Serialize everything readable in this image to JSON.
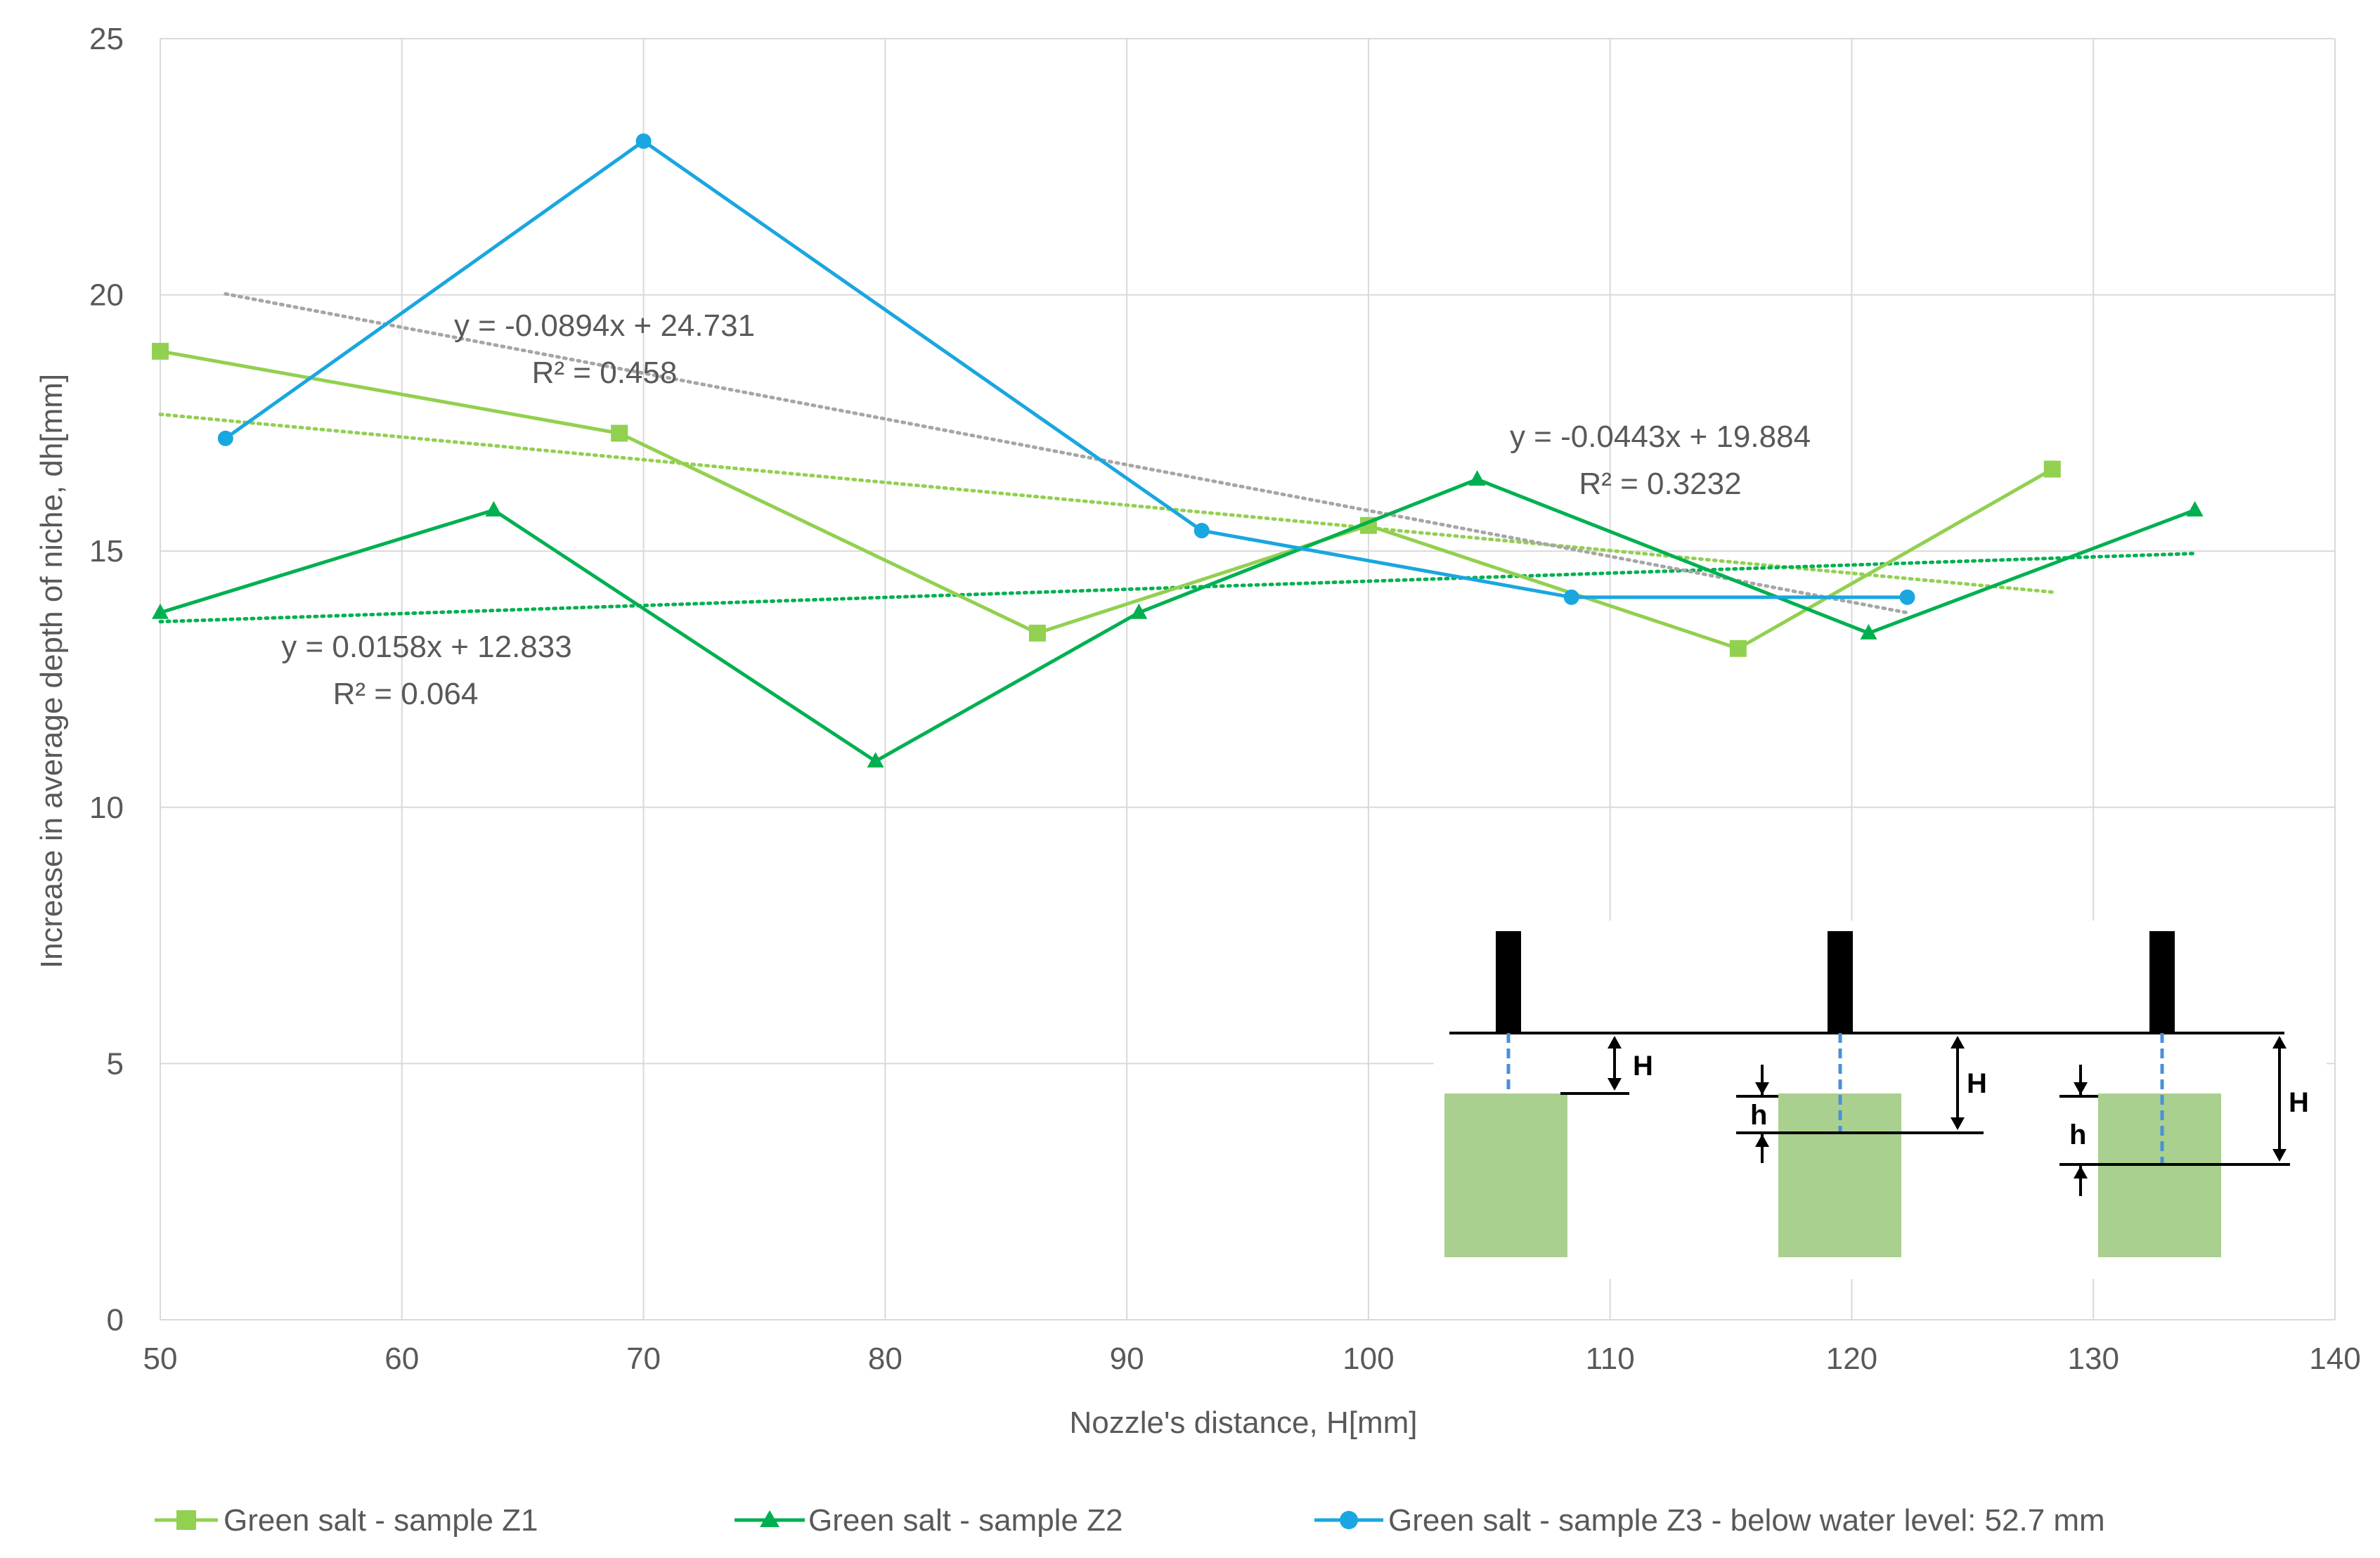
{
  "chart_data": {
    "type": "line",
    "title": "",
    "xlabel": "Nozzle's distance, H[mm]",
    "ylabel": "Increase in average depth of niche, dh[mm]",
    "xlim": [
      50,
      140
    ],
    "ylim": [
      0,
      25
    ],
    "xticks": [
      "50",
      "60",
      "70",
      "80",
      "90",
      "100",
      "110",
      "120",
      "130",
      "140"
    ],
    "yticks": [
      "0",
      "5",
      "10",
      "15",
      "20",
      "25"
    ],
    "grid": true,
    "legend_position": "bottom",
    "series": [
      {
        "name": "Green salt - sample Z1",
        "color": "#92d050",
        "marker": "square",
        "x": [
          50,
          69,
          86.3,
          100,
          115.3,
          128.3
        ],
        "y": [
          18.9,
          17.3,
          13.4,
          15.5,
          13.1,
          16.6
        ],
        "trendline": {
          "slope": -0.0443,
          "intercept": 19.884,
          "x_range": [
            50,
            128.3
          ],
          "equation": "y = -0.0443x + 19.884",
          "r2": "R² = 0.3232"
        }
      },
      {
        "name": "Green salt - sample Z2",
        "color": "#00b050",
        "marker": "triangle",
        "x": [
          50,
          63.8,
          79.6,
          90.5,
          104.5,
          120.7,
          134.2
        ],
        "y": [
          13.8,
          15.8,
          10.9,
          13.8,
          16.4,
          13.4,
          15.8
        ],
        "trendline": {
          "slope": 0.0158,
          "intercept": 12.833,
          "x_range": [
            50,
            134.2
          ],
          "equation": "y = 0.0158x + 12.833",
          "r2": "R² = 0.064"
        }
      },
      {
        "name": "Green salt - sample Z3 - below water level: 52.7 mm",
        "color": "#1aa6e0",
        "marker": "circle",
        "x": [
          52.7,
          70,
          93.1,
          108.4,
          122.3
        ],
        "y": [
          17.2,
          23,
          15.4,
          14.1,
          14.1
        ],
        "trendline": {
          "slope": -0.0894,
          "intercept": 24.731,
          "x_range": [
            52.7,
            122.3
          ],
          "equation": "y = -0.0894x + 24.731",
          "r2": "R² = 0.458"
        }
      }
    ],
    "trendline_color": "#a6a6a6",
    "inset_labels": [
      "H",
      "h",
      "H",
      "h",
      "H"
    ]
  }
}
